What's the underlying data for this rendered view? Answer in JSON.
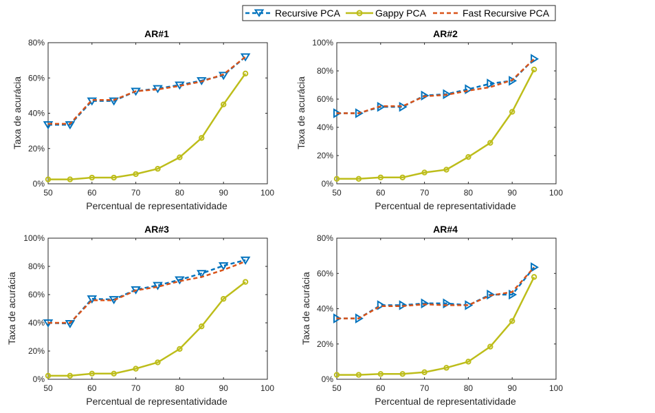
{
  "colors": {
    "recursive": "#0072BD",
    "gappy": "#BDBD1A",
    "fast": "#D95319",
    "axis": "#262626",
    "background": "#ffffff"
  },
  "legend": {
    "placement": "top",
    "entries": [
      {
        "name": "Recursive PCA",
        "style": "dashed-triangle"
      },
      {
        "name": "Gappy PCA",
        "style": "solid-circle"
      },
      {
        "name": "Fast Recursive PCA",
        "style": "dashed"
      }
    ]
  },
  "chart_data": [
    {
      "type": "line",
      "title": "AR#1",
      "xlabel": "Percentual de representatividade",
      "ylabel": "Taxa de acurácia",
      "xlim": [
        50,
        100
      ],
      "ylim": [
        0,
        80
      ],
      "xticks": [
        "50",
        "60",
        "70",
        "80",
        "90",
        "100"
      ],
      "yticks": [
        "0%",
        "20%",
        "40%",
        "60%",
        "80%"
      ],
      "recursive_marker": "down-triangle",
      "x": [
        50,
        55,
        60,
        65,
        70,
        75,
        80,
        85,
        90,
        95
      ],
      "series": [
        {
          "name": "Recursive PCA",
          "values": [
            33.5,
            33.5,
            47,
            47,
            52.5,
            54,
            56,
            58.5,
            61.5,
            72
          ]
        },
        {
          "name": "Gappy PCA",
          "values": [
            2.5,
            2.5,
            3.5,
            3.5,
            5.5,
            8.5,
            15,
            26,
            45,
            62.5
          ]
        },
        {
          "name": "Fast Recursive PCA",
          "values": [
            34,
            34,
            47.5,
            47.5,
            52.5,
            53.5,
            55.5,
            58,
            62,
            72
          ]
        }
      ]
    },
    {
      "type": "line",
      "title": "AR#2",
      "xlabel": "Percentual de representatividade",
      "ylabel": "Taxa de acurácia",
      "xlim": [
        50,
        100
      ],
      "ylim": [
        0,
        100
      ],
      "xticks": [
        "50",
        "60",
        "70",
        "80",
        "90",
        "100"
      ],
      "yticks": [
        "0%",
        "20%",
        "40%",
        "60%",
        "80%",
        "100%"
      ],
      "recursive_marker": "right-triangle",
      "x": [
        50,
        55,
        60,
        65,
        70,
        75,
        80,
        85,
        90,
        95
      ],
      "series": [
        {
          "name": "Recursive PCA",
          "values": [
            50,
            50,
            54.5,
            54.5,
            62.5,
            63.5,
            67,
            71,
            73,
            88.5
          ]
        },
        {
          "name": "Gappy PCA",
          "values": [
            3.5,
            3.5,
            4.5,
            4.5,
            8,
            10,
            19,
            29,
            51,
            81
          ]
        },
        {
          "name": "Fast Recursive PCA",
          "values": [
            50,
            50,
            55,
            55,
            62,
            63,
            66,
            68.5,
            73.5,
            88.5
          ]
        }
      ]
    },
    {
      "type": "line",
      "title": "AR#3",
      "xlabel": "Percentual de representatividade",
      "ylabel": "Taxa de acurácia",
      "xlim": [
        50,
        100
      ],
      "ylim": [
        0,
        100
      ],
      "xticks": [
        "50",
        "60",
        "70",
        "80",
        "90",
        "100"
      ],
      "yticks": [
        "0%",
        "20%",
        "40%",
        "60%",
        "80%",
        "100%"
      ],
      "recursive_marker": "down-triangle",
      "x": [
        50,
        55,
        60,
        65,
        70,
        75,
        80,
        85,
        90,
        95
      ],
      "series": [
        {
          "name": "Recursive PCA",
          "values": [
            40,
            39.5,
            57,
            56.5,
            63.5,
            66.5,
            70.5,
            75,
            80.5,
            84.5
          ]
        },
        {
          "name": "Gappy PCA",
          "values": [
            2.5,
            2.5,
            4,
            4,
            7.5,
            12,
            21.5,
            37.5,
            57,
            69
          ]
        },
        {
          "name": "Fast Recursive PCA",
          "values": [
            40,
            40,
            56,
            56,
            63,
            65.5,
            69.5,
            72.5,
            77.5,
            83.5
          ]
        }
      ]
    },
    {
      "type": "line",
      "title": "AR#4",
      "xlabel": "Percentual de representatividade",
      "ylabel": "Taxa de acurácia",
      "xlim": [
        50,
        100
      ],
      "ylim": [
        0,
        80
      ],
      "xticks": [
        "50",
        "60",
        "70",
        "80",
        "90",
        "100"
      ],
      "yticks": [
        "0%",
        "20%",
        "40%",
        "60%",
        "80%"
      ],
      "recursive_marker": "right-triangle",
      "x": [
        50,
        55,
        60,
        65,
        70,
        75,
        80,
        85,
        90,
        95
      ],
      "series": [
        {
          "name": "Recursive PCA",
          "values": [
            34.5,
            34.5,
            42,
            42,
            43,
            43,
            42,
            48,
            48,
            63.5
          ]
        },
        {
          "name": "Gappy PCA",
          "values": [
            2.5,
            2.5,
            3,
            3,
            4,
            6.5,
            10,
            18.5,
            33,
            58
          ]
        },
        {
          "name": "Fast Recursive PCA",
          "values": [
            34.5,
            34.5,
            41.5,
            41.5,
            42.5,
            42,
            42,
            47.5,
            49.5,
            63.5
          ]
        }
      ]
    }
  ]
}
